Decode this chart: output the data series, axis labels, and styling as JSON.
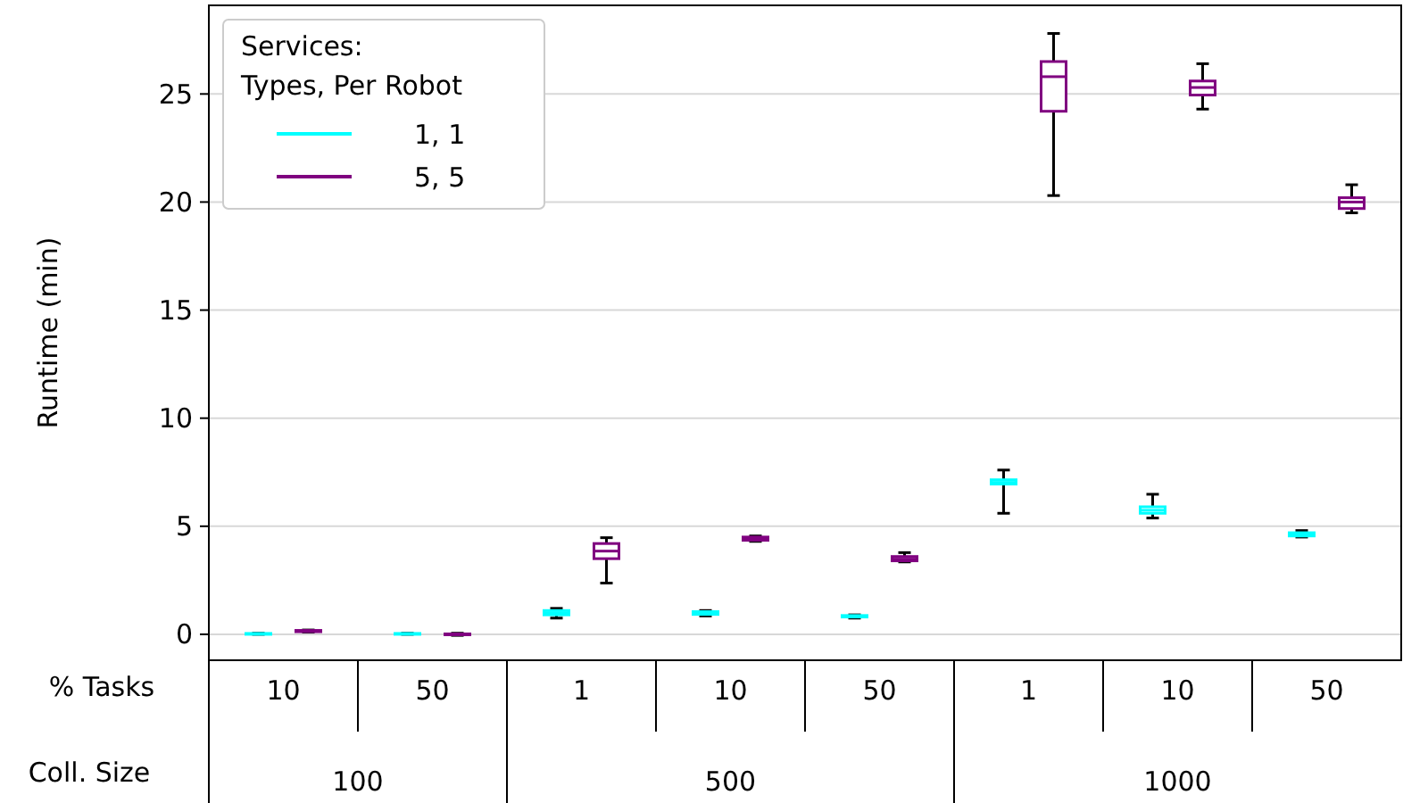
{
  "chart_data": {
    "type": "box",
    "ylabel": "Runtime (min)",
    "legend_title": "Services:\nTypes, Per Robot",
    "categories": [
      "10",
      "50",
      "1",
      "10",
      "50",
      "1",
      "10",
      "50"
    ],
    "ylim": [
      -1.2,
      29.1
    ],
    "yticks": [
      0,
      5,
      10,
      15,
      20,
      25
    ],
    "grid": "y",
    "legend": "top left",
    "annotations": [
      "% Tasks",
      "Coll. Size",
      "100",
      "500",
      "1000"
    ],
    "series": [
      {
        "name": "1, 1",
        "color": "#00ffff",
        "boxes": [
          {
            "low": 0,
            "q1": 0,
            "median": 0.02,
            "q3": 0.04,
            "high": 0.05
          },
          {
            "low": 0,
            "q1": 0,
            "median": 0.02,
            "q3": 0.04,
            "high": 0.05
          },
          {
            "low": 0.75,
            "q1": 0.9,
            "median": 1.0,
            "q3": 1.1,
            "high": 1.2
          },
          {
            "low": 0.85,
            "q1": 0.92,
            "median": 1.0,
            "q3": 1.05,
            "high": 1.1
          },
          {
            "low": 0.75,
            "q1": 0.8,
            "median": 0.83,
            "q3": 0.87,
            "high": 0.9
          },
          {
            "low": 5.6,
            "q1": 6.95,
            "median": 7.03,
            "q3": 7.15,
            "high": 7.6
          },
          {
            "low": 5.38,
            "q1": 5.6,
            "median": 5.74,
            "q3": 5.9,
            "high": 6.48
          },
          {
            "low": 4.5,
            "q1": 4.55,
            "median": 4.62,
            "q3": 4.7,
            "high": 4.8
          }
        ]
      },
      {
        "name": "5, 5",
        "color": "#800080",
        "boxes": [
          {
            "low": 0.1,
            "q1": 0.12,
            "median": 0.15,
            "q3": 0.18,
            "high": 0.2
          },
          {
            "low": -0.05,
            "q1": -0.02,
            "median": 0.0,
            "q3": 0.02,
            "high": 0.05
          },
          {
            "low": 2.37,
            "q1": 3.5,
            "median": 3.85,
            "q3": 4.2,
            "high": 4.47
          },
          {
            "low": 4.3,
            "q1": 4.35,
            "median": 4.42,
            "q3": 4.5,
            "high": 4.55
          },
          {
            "low": 3.35,
            "q1": 3.4,
            "median": 3.48,
            "q3": 3.6,
            "high": 3.78
          },
          {
            "low": 20.3,
            "q1": 24.2,
            "median": 25.8,
            "q3": 26.5,
            "high": 27.8
          },
          {
            "low": 24.3,
            "q1": 24.95,
            "median": 25.3,
            "q3": 25.6,
            "high": 26.4
          },
          {
            "low": 19.5,
            "q1": 19.7,
            "median": 20.0,
            "q3": 20.2,
            "high": 20.8
          }
        ]
      }
    ]
  }
}
